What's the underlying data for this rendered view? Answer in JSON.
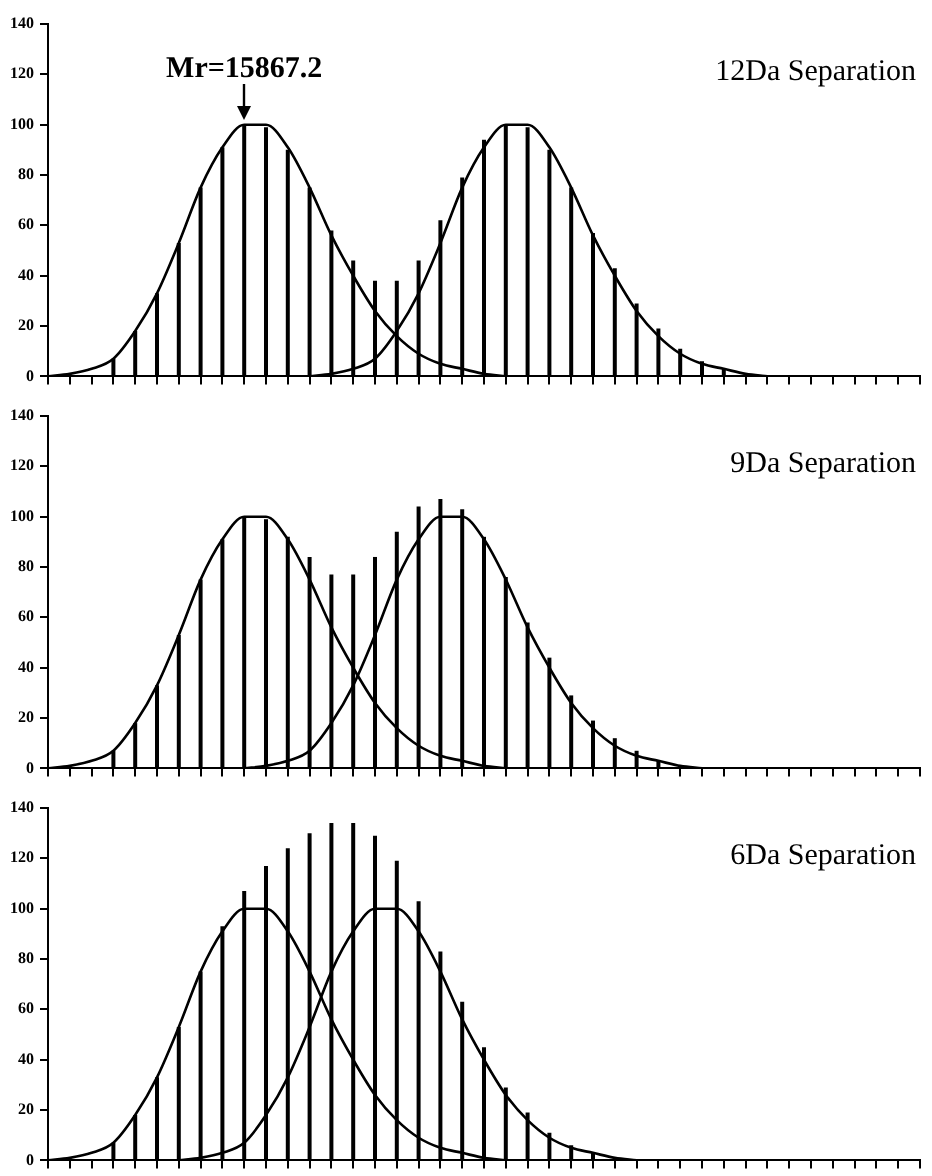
{
  "chart_data": [
    {
      "type": "bar",
      "title": "12Da Separation",
      "annotations": [
        "Mr=15867.2"
      ],
      "categories": [
        null,
        null,
        null,
        null,
        null,
        null,
        null,
        null,
        null,
        null,
        null,
        null,
        null,
        null,
        null,
        null,
        null,
        null,
        null,
        null,
        null,
        null,
        null,
        null,
        null,
        null,
        null,
        null,
        null,
        null,
        null,
        null,
        null,
        null,
        null,
        null,
        null,
        null,
        null,
        null,
        null
      ],
      "ylim": [
        0,
        140
      ],
      "yticks": [
        0,
        20,
        40,
        60,
        80,
        100,
        120,
        140
      ],
      "tick_labels": "y",
      "marker": "none",
      "series": [
        {
          "color": "#000000",
          "values": [
            null,
            null,
            null,
            7,
            18,
            33,
            53,
            75,
            91,
            100,
            99,
            90,
            75,
            58,
            46,
            38,
            38,
            46,
            62,
            79,
            94,
            100,
            99,
            90,
            75,
            57,
            43,
            29,
            19,
            11,
            6,
            3,
            null,
            null,
            null,
            null,
            null,
            null,
            null,
            null,
            null
          ]
        },
        {
          "type": "line",
          "color": "#000000",
          "values": [
            0,
            1,
            3,
            7,
            18,
            33,
            53,
            75,
            91,
            100,
            100,
            91,
            75,
            56,
            40,
            26,
            16,
            9,
            5,
            3,
            1,
            0,
            null,
            null,
            null,
            null,
            null,
            null,
            null,
            null,
            null,
            null,
            null,
            null,
            null,
            null,
            null,
            null,
            null,
            null,
            null
          ]
        },
        {
          "type": "line",
          "color": "#000000",
          "values": [
            null,
            null,
            null,
            null,
            null,
            null,
            null,
            null,
            null,
            null,
            null,
            null,
            0,
            1,
            3,
            7,
            18,
            33,
            53,
            75,
            91,
            100,
            100,
            91,
            75,
            56,
            40,
            26,
            16,
            9,
            5,
            3,
            1,
            0,
            null,
            null,
            null,
            null,
            null,
            null,
            null
          ]
        }
      ]
    },
    {
      "type": "bar",
      "title": "9Da Separation",
      "categories": [
        null,
        null,
        null,
        null,
        null,
        null,
        null,
        null,
        null,
        null,
        null,
        null,
        null,
        null,
        null,
        null,
        null,
        null,
        null,
        null,
        null,
        null,
        null,
        null,
        null,
        null,
        null,
        null,
        null,
        null,
        null,
        null,
        null,
        null,
        null,
        null,
        null,
        null,
        null,
        null,
        null
      ],
      "ylim": [
        0,
        140
      ],
      "yticks": [
        0,
        20,
        40,
        60,
        80,
        100,
        120,
        140
      ],
      "tick_labels": "y",
      "marker": "none",
      "series": [
        {
          "color": "#000000",
          "values": [
            null,
            null,
            null,
            7,
            18,
            33,
            53,
            75,
            91,
            100,
            99,
            92,
            84,
            77,
            77,
            84,
            94,
            104,
            107,
            103,
            92,
            76,
            58,
            44,
            29,
            19,
            12,
            7,
            3,
            null,
            null,
            null,
            null,
            null,
            null,
            null,
            null,
            null,
            null,
            null,
            null
          ]
        },
        {
          "type": "line",
          "color": "#000000",
          "values": [
            0,
            1,
            3,
            7,
            18,
            33,
            53,
            75,
            91,
            100,
            100,
            91,
            75,
            56,
            40,
            26,
            16,
            9,
            5,
            3,
            1,
            0,
            null,
            null,
            null,
            null,
            null,
            null,
            null,
            null,
            null,
            null,
            null,
            null,
            null,
            null,
            null,
            null,
            null,
            null,
            null
          ]
        },
        {
          "type": "line",
          "color": "#000000",
          "values": [
            null,
            null,
            null,
            null,
            null,
            null,
            null,
            null,
            null,
            0,
            1,
            3,
            7,
            18,
            33,
            53,
            75,
            91,
            100,
            100,
            91,
            75,
            56,
            40,
            26,
            16,
            9,
            5,
            3,
            1,
            0,
            null,
            null,
            null,
            null,
            null,
            null,
            null,
            null,
            null,
            null
          ]
        }
      ]
    },
    {
      "type": "bar",
      "title": "6Da Separation",
      "categories": [
        null,
        null,
        null,
        null,
        null,
        null,
        null,
        null,
        null,
        null,
        null,
        null,
        null,
        null,
        null,
        null,
        null,
        null,
        null,
        null,
        null,
        null,
        null,
        null,
        null,
        null,
        null,
        null,
        null,
        null,
        null,
        null,
        null,
        null,
        null,
        null,
        null,
        null,
        null,
        null,
        null
      ],
      "ylim": [
        0,
        140
      ],
      "yticks": [
        0,
        20,
        40,
        60,
        80,
        100,
        120,
        140
      ],
      "tick_labels": "y",
      "marker": "none",
      "series": [
        {
          "color": "#000000",
          "values": [
            null,
            null,
            null,
            7,
            18,
            33,
            53,
            75,
            93,
            107,
            117,
            124,
            130,
            134,
            134,
            129,
            119,
            103,
            83,
            63,
            45,
            29,
            19,
            11,
            6,
            3,
            null,
            null,
            null,
            null,
            null,
            null,
            null,
            null,
            null,
            null,
            null,
            null,
            null,
            null,
            null
          ]
        },
        {
          "type": "line",
          "color": "#000000",
          "values": [
            0,
            1,
            3,
            7,
            18,
            33,
            53,
            75,
            91,
            100,
            100,
            91,
            75,
            56,
            40,
            26,
            16,
            9,
            5,
            3,
            1,
            0,
            null,
            null,
            null,
            null,
            null,
            null,
            null,
            null,
            null,
            null,
            null,
            null,
            null,
            null,
            null,
            null,
            null,
            null,
            null
          ]
        },
        {
          "type": "line",
          "color": "#000000",
          "values": [
            null,
            null,
            null,
            null,
            null,
            null,
            0,
            1,
            3,
            7,
            18,
            33,
            53,
            75,
            91,
            100,
            100,
            91,
            75,
            56,
            40,
            26,
            16,
            9,
            5,
            3,
            1,
            0,
            null,
            null,
            null,
            null,
            null,
            null,
            null,
            null,
            null,
            null,
            null,
            null,
            null
          ]
        }
      ]
    }
  ]
}
